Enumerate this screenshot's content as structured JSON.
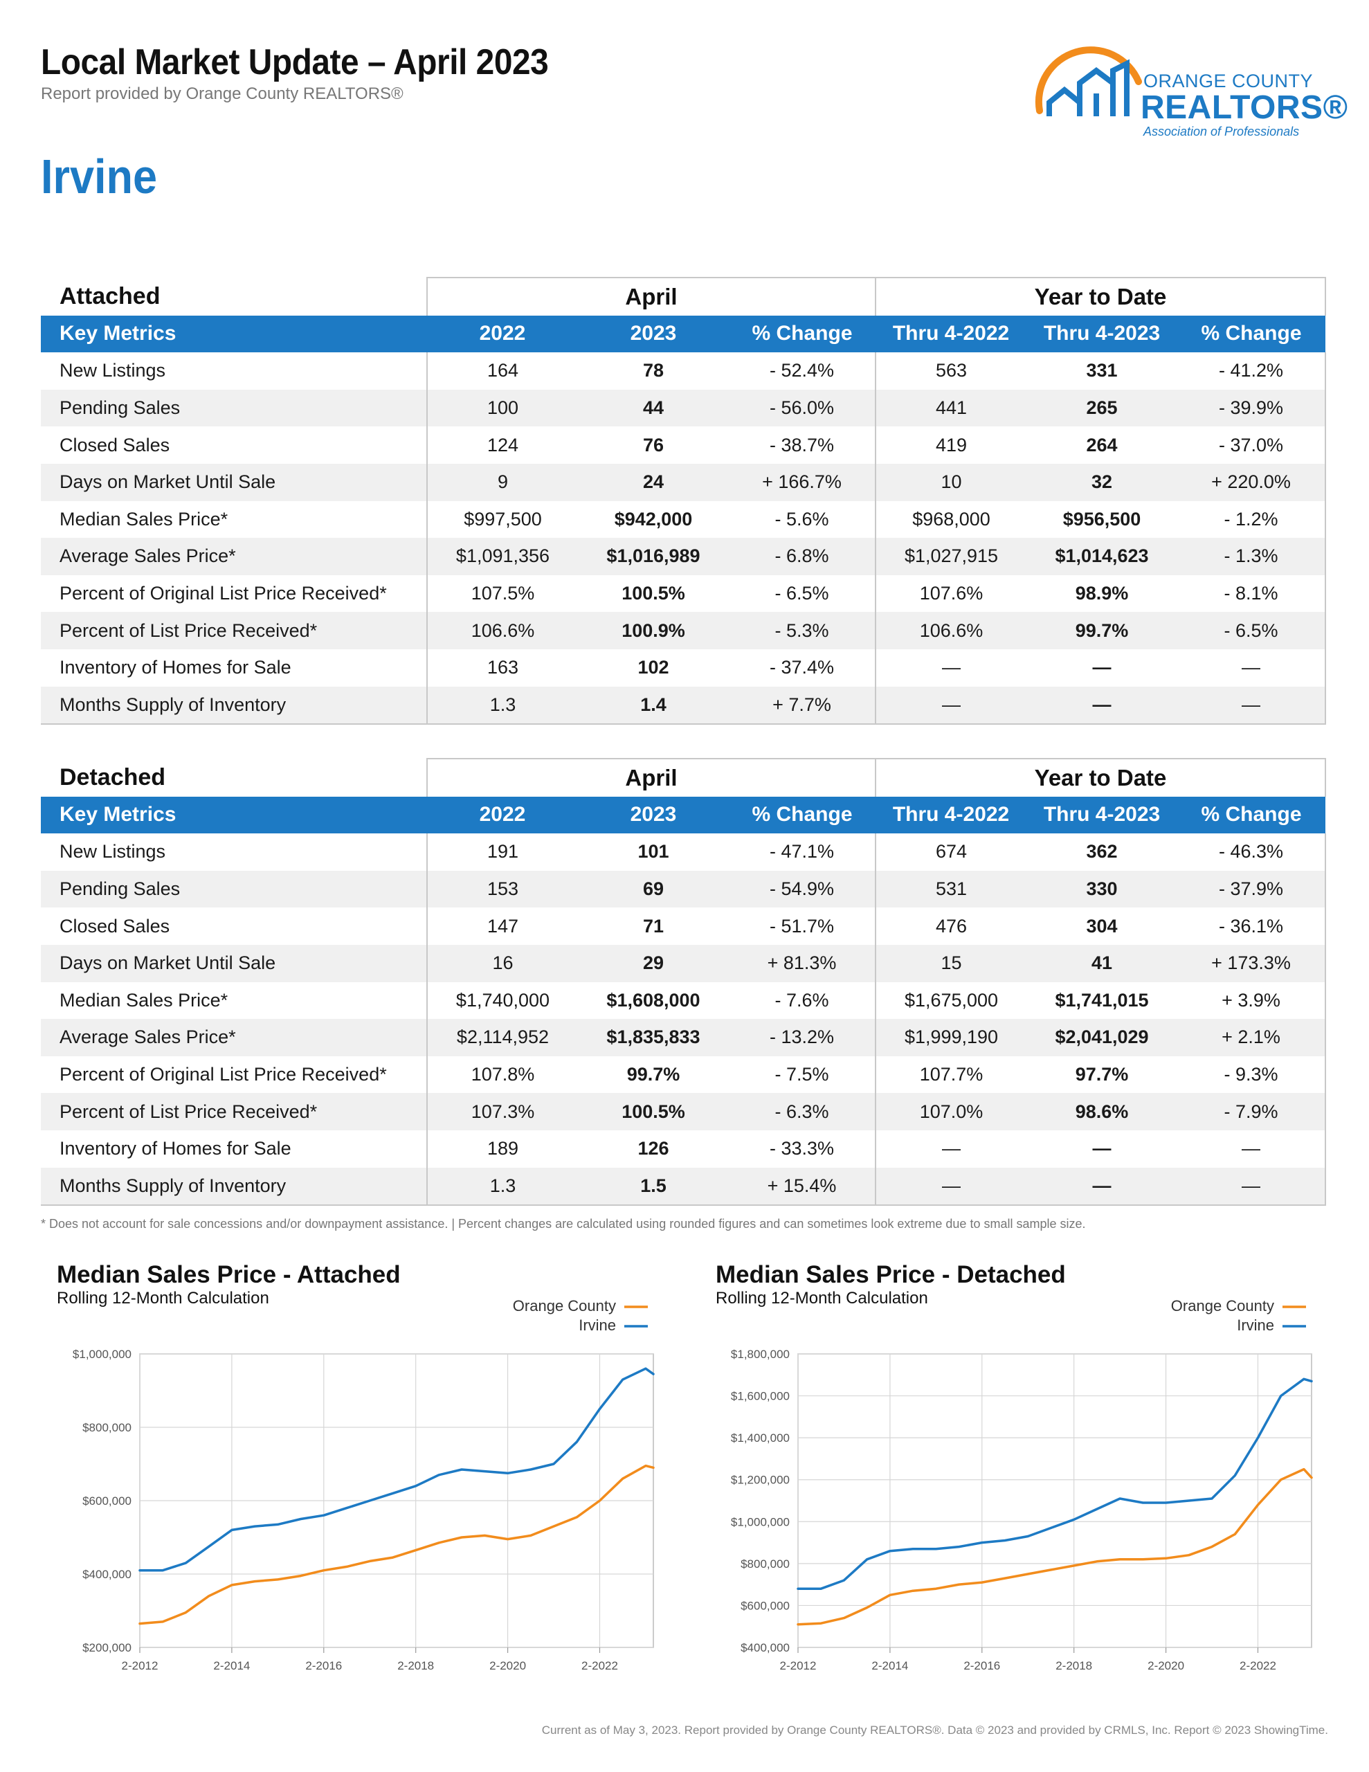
{
  "header": {
    "title": "Local Market Update – April 2023",
    "subtitle": "Report provided by Orange County REALTORS®",
    "city": "Irvine"
  },
  "logo": {
    "line1": "ORANGE COUNTY",
    "line2": "REALTORS®",
    "line3": "Association of Professionals"
  },
  "columns": {
    "key_metrics": "Key Metrics",
    "april": "April",
    "ytd": "Year to Date",
    "y2022": "2022",
    "y2023": "2023",
    "pct": "% Change",
    "thru2022": "Thru 4-2022",
    "thru2023": "Thru 4-2023"
  },
  "attached": {
    "label": "Attached",
    "rows": [
      {
        "metric": "New Listings",
        "a2022": "164",
        "a2023": "78",
        "achg": "- 52.4%",
        "y2022": "563",
        "y2023": "331",
        "ychg": "- 41.2%"
      },
      {
        "metric": "Pending Sales",
        "a2022": "100",
        "a2023": "44",
        "achg": "- 56.0%",
        "y2022": "441",
        "y2023": "265",
        "ychg": "- 39.9%"
      },
      {
        "metric": "Closed Sales",
        "a2022": "124",
        "a2023": "76",
        "achg": "- 38.7%",
        "y2022": "419",
        "y2023": "264",
        "ychg": "- 37.0%"
      },
      {
        "metric": "Days on Market Until Sale",
        "a2022": "9",
        "a2023": "24",
        "achg": "+ 166.7%",
        "y2022": "10",
        "y2023": "32",
        "ychg": "+ 220.0%"
      },
      {
        "metric": "Median Sales Price*",
        "a2022": "$997,500",
        "a2023": "$942,000",
        "achg": "- 5.6%",
        "y2022": "$968,000",
        "y2023": "$956,500",
        "ychg": "- 1.2%"
      },
      {
        "metric": "Average Sales Price*",
        "a2022": "$1,091,356",
        "a2023": "$1,016,989",
        "achg": "- 6.8%",
        "y2022": "$1,027,915",
        "y2023": "$1,014,623",
        "ychg": "- 1.3%"
      },
      {
        "metric": "Percent of Original List Price Received*",
        "a2022": "107.5%",
        "a2023": "100.5%",
        "achg": "- 6.5%",
        "y2022": "107.6%",
        "y2023": "98.9%",
        "ychg": "- 8.1%"
      },
      {
        "metric": "Percent of List Price Received*",
        "a2022": "106.6%",
        "a2023": "100.9%",
        "achg": "- 5.3%",
        "y2022": "106.6%",
        "y2023": "99.7%",
        "ychg": "- 6.5%"
      },
      {
        "metric": "Inventory of Homes for Sale",
        "a2022": "163",
        "a2023": "102",
        "achg": "- 37.4%",
        "y2022": "—",
        "y2023": "—",
        "ychg": "—"
      },
      {
        "metric": "Months Supply of Inventory",
        "a2022": "1.3",
        "a2023": "1.4",
        "achg": "+ 7.7%",
        "y2022": "—",
        "y2023": "—",
        "ychg": "—"
      }
    ]
  },
  "detached": {
    "label": "Detached",
    "rows": [
      {
        "metric": "New Listings",
        "a2022": "191",
        "a2023": "101",
        "achg": "- 47.1%",
        "y2022": "674",
        "y2023": "362",
        "ychg": "- 46.3%"
      },
      {
        "metric": "Pending Sales",
        "a2022": "153",
        "a2023": "69",
        "achg": "- 54.9%",
        "y2022": "531",
        "y2023": "330",
        "ychg": "- 37.9%"
      },
      {
        "metric": "Closed Sales",
        "a2022": "147",
        "a2023": "71",
        "achg": "- 51.7%",
        "y2022": "476",
        "y2023": "304",
        "ychg": "- 36.1%"
      },
      {
        "metric": "Days on Market Until Sale",
        "a2022": "16",
        "a2023": "29",
        "achg": "+ 81.3%",
        "y2022": "15",
        "y2023": "41",
        "ychg": "+ 173.3%"
      },
      {
        "metric": "Median Sales Price*",
        "a2022": "$1,740,000",
        "a2023": "$1,608,000",
        "achg": "- 7.6%",
        "y2022": "$1,675,000",
        "y2023": "$1,741,015",
        "ychg": "+ 3.9%"
      },
      {
        "metric": "Average Sales Price*",
        "a2022": "$2,114,952",
        "a2023": "$1,835,833",
        "achg": "- 13.2%",
        "y2022": "$1,999,190",
        "y2023": "$2,041,029",
        "ychg": "+ 2.1%"
      },
      {
        "metric": "Percent of Original List Price Received*",
        "a2022": "107.8%",
        "a2023": "99.7%",
        "achg": "- 7.5%",
        "y2022": "107.7%",
        "y2023": "97.7%",
        "ychg": "- 9.3%"
      },
      {
        "metric": "Percent of List Price Received*",
        "a2022": "107.3%",
        "a2023": "100.5%",
        "achg": "- 6.3%",
        "y2022": "107.0%",
        "y2023": "98.6%",
        "ychg": "- 7.9%"
      },
      {
        "metric": "Inventory of Homes for Sale",
        "a2022": "189",
        "a2023": "126",
        "achg": "- 33.3%",
        "y2022": "—",
        "y2023": "—",
        "ychg": "—"
      },
      {
        "metric": "Months Supply of Inventory",
        "a2022": "1.3",
        "a2023": "1.5",
        "achg": "+ 15.4%",
        "y2022": "—",
        "y2023": "—",
        "ychg": "—"
      }
    ]
  },
  "footnote": "* Does not account for sale concessions and/or downpayment assistance.  |  Percent changes are calculated using rounded figures and can sometimes look extreme due to small sample size.",
  "colors": {
    "brand_blue": "#1d7ac4",
    "orange_county_line": "#f28c1c",
    "irvine_line": "#1d7ac4"
  },
  "chart_data": [
    {
      "type": "line",
      "title": "Median Sales Price - Attached",
      "subtitle": "Rolling 12-Month Calculation",
      "x_tick_labels": [
        "2-2012",
        "2-2014",
        "2-2016",
        "2-2018",
        "2-2020",
        "2-2022"
      ],
      "x_range": [
        "2012-02",
        "2023-04"
      ],
      "y_tick_labels": [
        "$1,000,000",
        "$800,000",
        "$600,000",
        "$400,000",
        "$200,000"
      ],
      "ylim": [
        200000,
        1000000
      ],
      "grid": true,
      "legend_position": "top-right",
      "x": [
        "2012-02",
        "2012-08",
        "2013-02",
        "2013-08",
        "2014-02",
        "2014-08",
        "2015-02",
        "2015-08",
        "2016-02",
        "2016-08",
        "2017-02",
        "2017-08",
        "2018-02",
        "2018-08",
        "2019-02",
        "2019-08",
        "2020-02",
        "2020-08",
        "2021-02",
        "2021-08",
        "2022-02",
        "2022-08",
        "2023-02",
        "2023-04"
      ],
      "series": [
        {
          "name": "Orange County",
          "color": "#f28c1c",
          "values": [
            265000,
            270000,
            295000,
            340000,
            370000,
            380000,
            385000,
            395000,
            410000,
            420000,
            435000,
            445000,
            465000,
            485000,
            500000,
            505000,
            495000,
            505000,
            530000,
            555000,
            600000,
            660000,
            695000,
            690000
          ]
        },
        {
          "name": "Irvine",
          "color": "#1d7ac4",
          "values": [
            410000,
            410000,
            430000,
            475000,
            520000,
            530000,
            535000,
            550000,
            560000,
            580000,
            600000,
            620000,
            640000,
            670000,
            685000,
            680000,
            675000,
            685000,
            700000,
            760000,
            850000,
            930000,
            960000,
            945000
          ]
        }
      ]
    },
    {
      "type": "line",
      "title": "Median Sales Price - Detached",
      "subtitle": "Rolling 12-Month Calculation",
      "x_tick_labels": [
        "2-2012",
        "2-2014",
        "2-2016",
        "2-2018",
        "2-2020",
        "2-2022"
      ],
      "x_range": [
        "2012-02",
        "2023-04"
      ],
      "y_tick_labels": [
        "$1,800,000",
        "$1,600,000",
        "$1,400,000",
        "$1,200,000",
        "$1,000,000",
        "$800,000",
        "$600,000",
        "$400,000"
      ],
      "ylim": [
        400000,
        1800000
      ],
      "grid": true,
      "legend_position": "top-right",
      "x": [
        "2012-02",
        "2012-08",
        "2013-02",
        "2013-08",
        "2014-02",
        "2014-08",
        "2015-02",
        "2015-08",
        "2016-02",
        "2016-08",
        "2017-02",
        "2017-08",
        "2018-02",
        "2018-08",
        "2019-02",
        "2019-08",
        "2020-02",
        "2020-08",
        "2021-02",
        "2021-08",
        "2022-02",
        "2022-08",
        "2023-02",
        "2023-04"
      ],
      "series": [
        {
          "name": "Orange County",
          "color": "#f28c1c",
          "values": [
            510000,
            515000,
            540000,
            590000,
            650000,
            670000,
            680000,
            700000,
            710000,
            730000,
            750000,
            770000,
            790000,
            810000,
            820000,
            820000,
            825000,
            840000,
            880000,
            940000,
            1080000,
            1200000,
            1250000,
            1210000
          ]
        },
        {
          "name": "Irvine",
          "color": "#1d7ac4",
          "values": [
            680000,
            680000,
            720000,
            820000,
            860000,
            870000,
            870000,
            880000,
            900000,
            910000,
            930000,
            970000,
            1010000,
            1060000,
            1110000,
            1090000,
            1090000,
            1100000,
            1110000,
            1220000,
            1400000,
            1600000,
            1680000,
            1670000
          ]
        }
      ]
    }
  ],
  "footer": "Current as of May 3, 2023. Report provided by Orange County REALTORS®. Data © 2023 and provided by CRMLS, Inc. Report © 2023 ShowingTime."
}
